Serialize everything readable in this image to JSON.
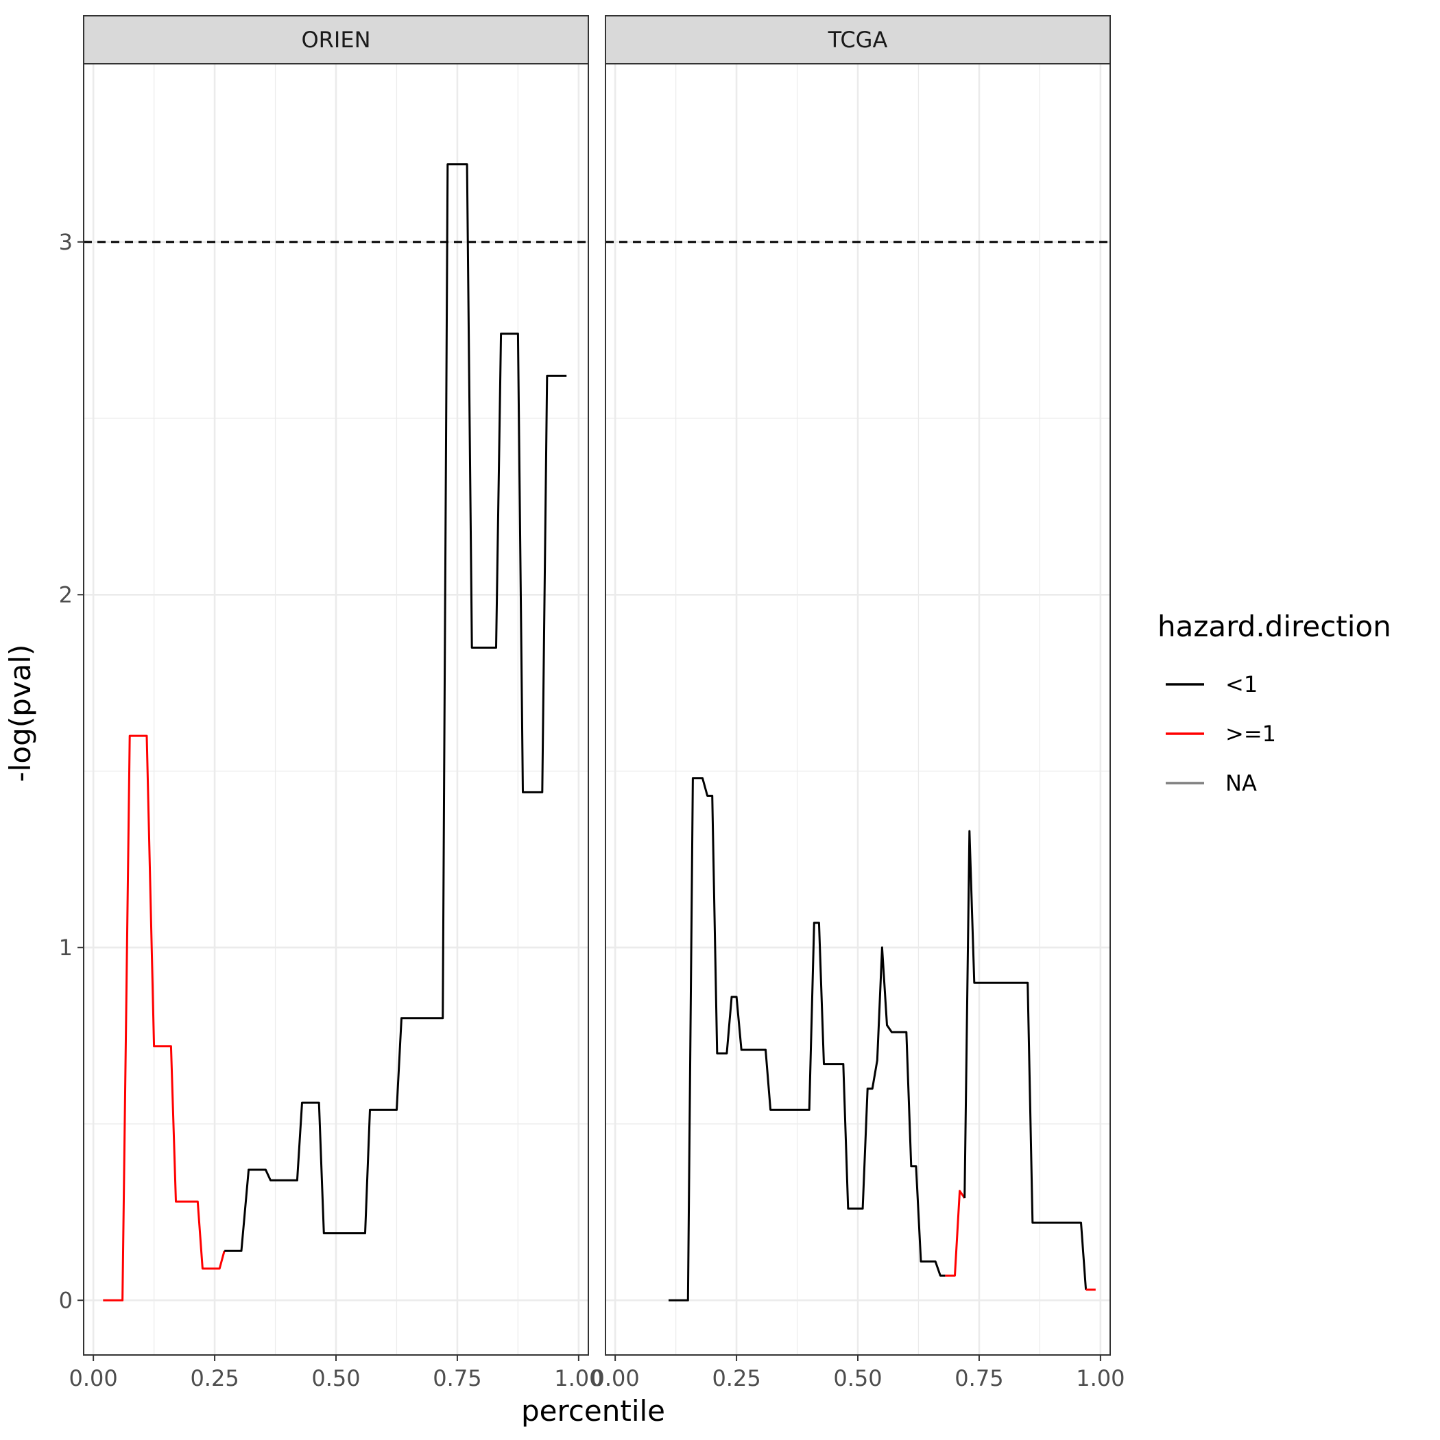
{
  "chart_data": {
    "type": "line",
    "xlabel": "percentile",
    "ylabel": "-log(pval)",
    "xlim": [
      -0.02,
      1.02
    ],
    "ylim": [
      -0.155,
      3.505
    ],
    "x_ticks": [
      0,
      0.25,
      0.5,
      0.75,
      1
    ],
    "x_tick_labels": [
      "0.00",
      "0.25",
      "0.50",
      "0.75",
      "1.00"
    ],
    "y_ticks": [
      0,
      1,
      2,
      3
    ],
    "y_tick_labels": [
      "0",
      "1",
      "2",
      "3"
    ],
    "reference_line": {
      "y": 3,
      "style": "dashed",
      "color": "#000000"
    },
    "grid": true,
    "legend": {
      "title": "hazard.direction",
      "position": "right",
      "entries": [
        {
          "label": "<1",
          "color": "#000000"
        },
        {
          "label": ">=1",
          "color": "#ff0000"
        },
        {
          "label": "NA",
          "color": "#808080"
        }
      ]
    },
    "panels": [
      {
        "title": "ORIEN",
        "segments": [
          {
            "direction": ">=1",
            "points": [
              [
                0.02,
                0
              ],
              [
                0.06,
                0
              ],
              [
                0.075,
                1.6
              ],
              [
                0.11,
                1.6
              ],
              [
                0.125,
                0.72
              ],
              [
                0.16,
                0.72
              ],
              [
                0.17,
                0.28
              ],
              [
                0.215,
                0.28
              ],
              [
                0.225,
                0.09
              ],
              [
                0.26,
                0.09
              ],
              [
                0.27,
                0.14
              ]
            ]
          },
          {
            "direction": "<1",
            "points": [
              [
                0.27,
                0.14
              ],
              [
                0.305,
                0.14
              ],
              [
                0.32,
                0.37
              ],
              [
                0.355,
                0.37
              ],
              [
                0.365,
                0.34
              ],
              [
                0.42,
                0.34
              ],
              [
                0.43,
                0.56
              ],
              [
                0.465,
                0.56
              ],
              [
                0.475,
                0.19
              ],
              [
                0.56,
                0.19
              ],
              [
                0.57,
                0.54
              ],
              [
                0.625,
                0.54
              ],
              [
                0.635,
                0.8
              ],
              [
                0.72,
                0.8
              ],
              [
                0.73,
                3.22
              ],
              [
                0.77,
                3.22
              ],
              [
                0.78,
                1.85
              ],
              [
                0.83,
                1.85
              ],
              [
                0.84,
                2.74
              ],
              [
                0.875,
                2.74
              ],
              [
                0.885,
                1.44
              ],
              [
                0.925,
                1.44
              ],
              [
                0.935,
                2.62
              ],
              [
                0.975,
                2.62
              ]
            ]
          }
        ]
      },
      {
        "title": "TCGA",
        "segments": [
          {
            "direction": "<1",
            "points": [
              [
                0.11,
                0
              ],
              [
                0.15,
                0
              ],
              [
                0.16,
                1.48
              ],
              [
                0.18,
                1.48
              ],
              [
                0.19,
                1.43
              ],
              [
                0.2,
                1.43
              ],
              [
                0.21,
                0.7
              ],
              [
                0.23,
                0.7
              ],
              [
                0.24,
                0.86
              ],
              [
                0.25,
                0.86
              ],
              [
                0.26,
                0.71
              ],
              [
                0.31,
                0.71
              ],
              [
                0.32,
                0.54
              ],
              [
                0.4,
                0.54
              ],
              [
                0.41,
                1.07
              ],
              [
                0.42,
                1.07
              ],
              [
                0.43,
                0.67
              ],
              [
                0.47,
                0.67
              ],
              [
                0.48,
                0.26
              ],
              [
                0.51,
                0.26
              ],
              [
                0.52,
                0.6
              ],
              [
                0.53,
                0.6
              ],
              [
                0.54,
                0.68
              ],
              [
                0.55,
                1.0
              ],
              [
                0.56,
                0.78
              ],
              [
                0.57,
                0.76
              ],
              [
                0.6,
                0.76
              ],
              [
                0.61,
                0.38
              ],
              [
                0.62,
                0.38
              ],
              [
                0.63,
                0.11
              ],
              [
                0.66,
                0.11
              ],
              [
                0.67,
                0.07
              ],
              [
                0.68,
                0.07
              ]
            ]
          },
          {
            "direction": ">=1",
            "points": [
              [
                0.68,
                0.07
              ],
              [
                0.7,
                0.07
              ],
              [
                0.71,
                0.31
              ],
              [
                0.72,
                0.29
              ]
            ]
          },
          {
            "direction": "<1",
            "points": [
              [
                0.72,
                0.29
              ],
              [
                0.73,
                1.33
              ],
              [
                0.74,
                0.9
              ],
              [
                0.85,
                0.9
              ],
              [
                0.86,
                0.22
              ],
              [
                0.96,
                0.22
              ],
              [
                0.97,
                0.03
              ]
            ]
          },
          {
            "direction": ">=1",
            "points": [
              [
                0.97,
                0.03
              ],
              [
                0.99,
                0.03
              ]
            ]
          }
        ]
      }
    ]
  }
}
